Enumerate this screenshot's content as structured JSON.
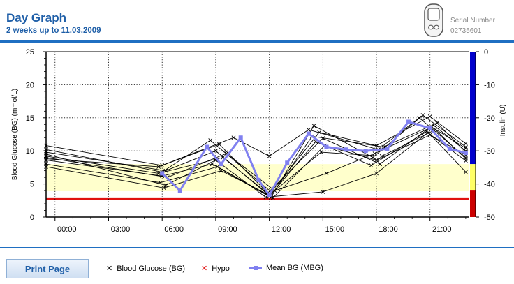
{
  "header": {
    "title": "Day Graph",
    "subtitle": "2 weeks up to 11.03.2009",
    "serial_label": "Serial Number",
    "serial_number": "02735601"
  },
  "buttons": {
    "print_label": "Print Page"
  },
  "legend": {
    "bg_label": "Blood Glucose (BG)",
    "hypo_label": "Hypo",
    "mbg_label": "Mean BG (MBG)"
  },
  "colors": {
    "accent": "#1f6fc2",
    "title": "#1f5fa8",
    "hypo": "#e01010",
    "target_band": "#ffffcc",
    "mean": "#8080f0",
    "bg_line": "#000000",
    "insulin_high": "#0000cc",
    "insulin_target": "#ffff66",
    "insulin_low": "#cc0000"
  },
  "chart_data": {
    "type": "line",
    "xlabel": "",
    "ylabel": "Blood Glucose (BG) (mmol/L)",
    "y2label": "Insulin (U)",
    "xlim": [
      -0.5,
      23.2
    ],
    "ylim": [
      0,
      25
    ],
    "y2lim": [
      -50,
      0
    ],
    "x_ticks": [
      "00:00",
      "03:00",
      "06:00",
      "09:00",
      "12:00",
      "15:00",
      "18:00",
      "21:00"
    ],
    "x_tick_values": [
      0,
      3,
      6,
      9,
      12,
      15,
      18,
      21
    ],
    "y_ticks": [
      0,
      5,
      10,
      15,
      20,
      25
    ],
    "y2_ticks": [
      0,
      -10,
      -20,
      -30,
      -40,
      -50
    ],
    "hypo_threshold": 2.7,
    "target_range": [
      3.9,
      8
    ],
    "insulin_bands": [
      [
        0,
        17
      ],
      [
        17,
        8
      ],
      [
        8,
        4
      ],
      [
        4,
        0
      ]
    ],
    "bg_series": [
      {
        "x": [
          -0.5,
          6.0,
          9.2,
          12.0,
          14.8,
          18.0,
          21.0,
          23.0
        ],
        "y": [
          10.8,
          7.8,
          11.0,
          3.4,
          12.8,
          10.8,
          15.2,
          11.1
        ]
      },
      {
        "x": [
          -0.5,
          6.2,
          9.0,
          12.1,
          14.5,
          17.8,
          20.6,
          23.0
        ],
        "y": [
          9.8,
          7.0,
          10.0,
          3.0,
          13.8,
          9.0,
          15.4,
          10.6
        ]
      },
      {
        "x": [
          -0.5,
          5.8,
          9.4,
          11.9,
          15.0,
          18.2,
          21.2,
          23.0
        ],
        "y": [
          9.2,
          6.6,
          9.0,
          3.6,
          11.9,
          8.0,
          13.9,
          10.0
        ]
      },
      {
        "x": [
          -0.5,
          6.0,
          8.8,
          12.0,
          14.6,
          17.7,
          20.8,
          23.0
        ],
        "y": [
          8.6,
          6.2,
          8.0,
          3.1,
          11.4,
          7.8,
          12.9,
          8.5
        ]
      },
      {
        "x": [
          -0.5,
          5.9,
          9.1,
          12.2,
          15.1,
          18.0,
          21.0,
          23.0
        ],
        "y": [
          8.0,
          5.2,
          7.6,
          2.9,
          10.8,
          8.6,
          12.4,
          9.4
        ]
      },
      {
        "x": [
          -0.5,
          6.1,
          9.3,
          12.0,
          14.9,
          18.3,
          21.3,
          23.0
        ],
        "y": [
          7.6,
          4.4,
          7.0,
          3.3,
          9.8,
          9.2,
          13.2,
          8.8
        ]
      },
      {
        "x": [
          -0.5,
          6.2,
          9.0,
          11.8,
          15.0,
          18.0,
          20.9,
          23.0
        ],
        "y": [
          9.5,
          4.8,
          8.6,
          3.0,
          3.8,
          6.6,
          12.8,
          6.8
        ]
      },
      {
        "x": [
          -0.5,
          6.0,
          8.7,
          12.1,
          15.2,
          17.9,
          21.1,
          23.0
        ],
        "y": [
          10.2,
          6.8,
          11.6,
          3.8,
          6.6,
          9.6,
          13.6,
          10.4
        ]
      },
      {
        "x": [
          -0.5,
          5.8,
          10.0,
          12.0,
          14.2,
          18.1,
          20.4,
          23.0
        ],
        "y": [
          8.8,
          7.6,
          12.0,
          9.2,
          13.2,
          10.2,
          15.0,
          9.0
        ]
      },
      {
        "x": [
          -0.5,
          6.3,
          9.6,
          12.3,
          14.4,
          18.4,
          21.4,
          23.0
        ],
        "y": [
          9.0,
          6.0,
          9.6,
          4.0,
          12.2,
          10.6,
          14.2,
          9.8
        ]
      }
    ],
    "mean_series": {
      "name": "Mean BG (MBG)",
      "x": [
        6.0,
        7.0,
        8.5,
        9.3,
        10.4,
        11.4,
        12.0,
        13.0,
        14.2,
        15.2,
        16.3,
        17.4,
        18.6,
        19.8,
        21.0,
        22.1,
        23.0
      ],
      "y": [
        6.6,
        4.0,
        10.6,
        8.0,
        12.0,
        5.6,
        3.3,
        8.2,
        12.6,
        10.6,
        10.2,
        10.0,
        10.3,
        14.4,
        13.4,
        10.3,
        9.7
      ]
    }
  }
}
